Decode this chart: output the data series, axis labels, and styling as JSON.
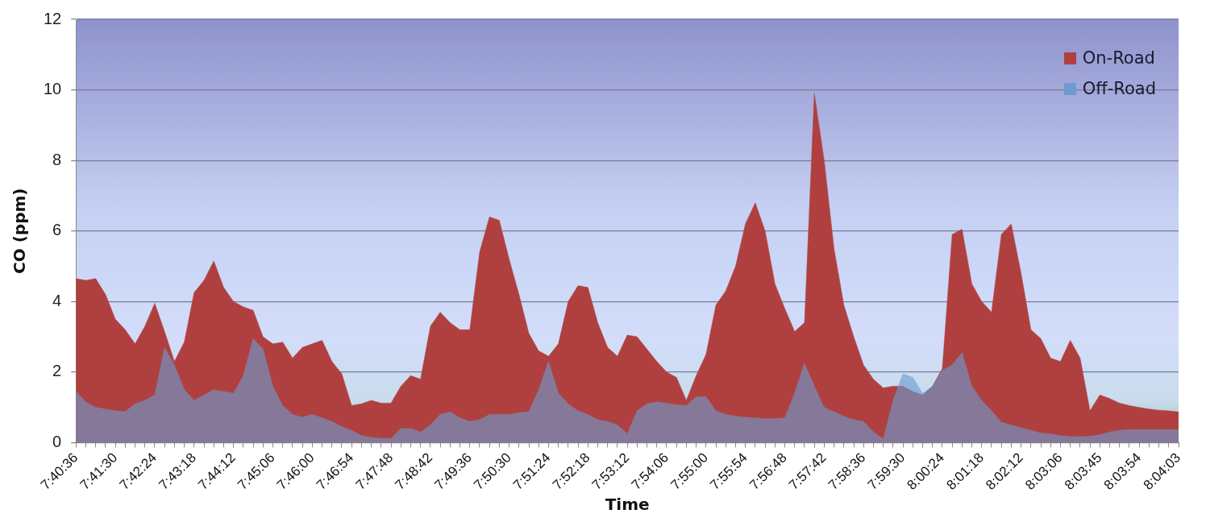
{
  "chart_data": {
    "type": "area",
    "xlabel": "Time",
    "ylabel": "CO (ppm)",
    "categories": [
      "7:40:36",
      null,
      null,
      null,
      "7:41:30",
      null,
      null,
      null,
      "7:42:24",
      null,
      null,
      null,
      "7:43:18",
      null,
      null,
      null,
      "7:44:12",
      null,
      null,
      null,
      "7:45:06",
      null,
      null,
      null,
      "7:46:00",
      null,
      null,
      null,
      "7:46:54",
      null,
      null,
      null,
      "7:47:48",
      null,
      null,
      null,
      "7:48:42",
      null,
      null,
      null,
      "7:49:36",
      null,
      null,
      null,
      "7:50:30",
      null,
      null,
      null,
      "7:51:24",
      null,
      null,
      null,
      "7:52:18",
      null,
      null,
      null,
      "7:53:12",
      null,
      null,
      null,
      "7:54:06",
      null,
      null,
      null,
      "7:55:00",
      null,
      null,
      null,
      "7:55:54",
      null,
      null,
      null,
      "7:56:48",
      null,
      null,
      null,
      "7:57:42",
      null,
      null,
      null,
      "7:58:36",
      null,
      null,
      null,
      "7:59:30",
      null,
      null,
      null,
      "8:00:24",
      null,
      null,
      null,
      "8:01:18",
      null,
      null,
      null,
      "8:02:12",
      null,
      null,
      null,
      "8:03:06",
      null,
      null,
      null,
      "8:03:45",
      null,
      null,
      null,
      "8:03:54",
      null,
      null,
      null,
      "8:04:03"
    ],
    "series": [
      {
        "name": "On-Road",
        "color": "#b0403f",
        "values": [
          4.65,
          4.6,
          4.65,
          4.2,
          3.5,
          3.2,
          2.8,
          3.3,
          3.95,
          3.15,
          2.3,
          2.85,
          4.25,
          4.6,
          5.15,
          4.4,
          4.0,
          3.85,
          3.75,
          3.0,
          2.8,
          2.85,
          2.4,
          2.7,
          2.8,
          2.9,
          2.3,
          1.95,
          1.05,
          1.1,
          1.2,
          1.12,
          1.12,
          1.6,
          1.9,
          1.8,
          3.3,
          3.7,
          3.4,
          3.2,
          3.2,
          5.4,
          6.4,
          6.3,
          5.2,
          4.2,
          3.1,
          2.6,
          2.45,
          2.8,
          4.0,
          4.45,
          4.4,
          3.4,
          2.7,
          2.45,
          3.05,
          3.0,
          2.65,
          2.3,
          2.0,
          1.85,
          1.2,
          1.9,
          2.5,
          3.9,
          4.3,
          5.0,
          6.2,
          6.8,
          6.0,
          4.5,
          3.8,
          3.15,
          3.4,
          9.9,
          8.0,
          5.5,
          3.9,
          3.0,
          2.2,
          1.8,
          1.55,
          1.6,
          1.6,
          1.45,
          1.35,
          1.6,
          2.1,
          5.9,
          6.05,
          4.5,
          4.0,
          3.7,
          5.9,
          6.2,
          4.8,
          3.2,
          2.95,
          2.4,
          2.3,
          2.9,
          2.4,
          0.9,
          1.35,
          1.25,
          1.12,
          1.05,
          1.0,
          0.95,
          0.92,
          0.9,
          0.87
        ]
      },
      {
        "name": "Off-Road",
        "color": "#6b9bd0",
        "values": [
          1.45,
          1.15,
          1.0,
          0.95,
          0.9,
          0.88,
          1.1,
          1.2,
          1.35,
          2.7,
          2.2,
          1.5,
          1.2,
          1.35,
          1.5,
          1.45,
          1.4,
          1.9,
          2.95,
          2.65,
          1.6,
          1.05,
          0.8,
          0.72,
          0.8,
          0.7,
          0.6,
          0.45,
          0.35,
          0.2,
          0.15,
          0.12,
          0.12,
          0.4,
          0.4,
          0.3,
          0.5,
          0.8,
          0.87,
          0.7,
          0.6,
          0.65,
          0.8,
          0.8,
          0.8,
          0.85,
          0.87,
          1.5,
          2.3,
          1.4,
          1.1,
          0.9,
          0.8,
          0.65,
          0.6,
          0.5,
          0.25,
          0.9,
          1.1,
          1.15,
          1.12,
          1.07,
          1.05,
          1.3,
          1.3,
          0.9,
          0.8,
          0.75,
          0.72,
          0.7,
          0.68,
          0.68,
          0.7,
          1.4,
          2.25,
          1.6,
          1.0,
          0.87,
          0.75,
          0.65,
          0.6,
          0.3,
          0.1,
          1.2,
          1.95,
          1.85,
          1.4,
          1.6,
          2.05,
          2.2,
          2.55,
          1.6,
          1.2,
          0.9,
          0.58,
          0.5,
          0.42,
          0.35,
          0.27,
          0.25,
          0.2,
          0.17,
          0.17,
          0.18,
          0.22,
          0.3,
          0.35,
          0.37,
          0.37,
          0.37,
          0.37,
          0.37,
          0.37
        ]
      }
    ],
    "ylim": [
      0,
      12
    ],
    "yticks": [
      0,
      2,
      4,
      6,
      8,
      10,
      12
    ],
    "grid": "y",
    "legend": "top right",
    "marker": "none"
  }
}
